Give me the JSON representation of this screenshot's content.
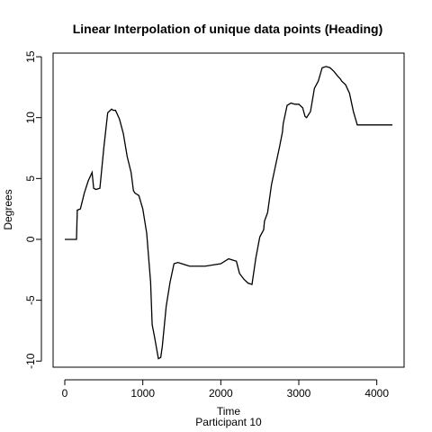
{
  "chart_data": {
    "type": "line",
    "title": "Linear Interpolation of unique data points (Heading)",
    "xlabel": "Time",
    "subtitle": "Participant  10",
    "ylabel": "Degrees",
    "xlim": [
      -150,
      4350
    ],
    "ylim": [
      -10.5,
      15.3
    ],
    "xticks": [
      0,
      1000,
      2000,
      3000,
      4000
    ],
    "yticks": [
      -10,
      -5,
      0,
      5,
      10,
      15
    ],
    "line_color": "#000000",
    "series": [
      {
        "x": [
          0,
          100,
          150,
          160,
          200,
          250,
          300,
          350,
          370,
          400,
          450,
          500,
          550,
          600,
          620,
          650,
          700,
          750,
          800,
          850,
          880,
          900,
          950,
          1000,
          1050,
          1100,
          1120,
          1150,
          1200,
          1230,
          1250,
          1300,
          1350,
          1400,
          1450,
          1500,
          1550,
          1600,
          1650,
          1700,
          1750,
          1800,
          1900,
          2000,
          2100,
          2200,
          2240,
          2300,
          2350,
          2400,
          2450,
          2500,
          2550,
          2560,
          2600,
          2650,
          2700,
          2750,
          2790,
          2800,
          2850,
          2900,
          2950,
          3000,
          3050,
          3080,
          3100,
          3150,
          3200,
          3250,
          3300,
          3350,
          3400,
          3450,
          3500,
          3530,
          3550,
          3600,
          3650,
          3700,
          3750,
          3800,
          3850,
          3900,
          3950,
          4000,
          4050,
          4100,
          4150,
          4200
        ],
        "y": [
          0,
          0,
          0,
          2.4,
          2.5,
          3.8,
          4.8,
          5.5,
          4.2,
          4.1,
          4.2,
          7.5,
          10.4,
          10.7,
          10.6,
          10.6,
          9.9,
          8.7,
          6.8,
          5.5,
          4.0,
          3.8,
          3.6,
          2.5,
          0.5,
          -3.5,
          -7.0,
          -8.0,
          -9.8,
          -9.7,
          -8.8,
          -5.5,
          -3.5,
          -2.0,
          -1.9,
          -2.0,
          -2.1,
          -2.2,
          -2.2,
          -2.2,
          -2.2,
          -2.2,
          -2.1,
          -2.0,
          -1.6,
          -1.8,
          -2.8,
          -3.3,
          -3.6,
          -3.7,
          -1.5,
          0.2,
          0.8,
          1.5,
          2.2,
          4.5,
          6.0,
          7.5,
          8.8,
          9.5,
          11.0,
          11.2,
          11.1,
          11.1,
          10.8,
          10.1,
          10.0,
          10.5,
          12.4,
          13.0,
          14.1,
          14.2,
          14.1,
          13.8,
          13.4,
          13.2,
          13.0,
          12.7,
          12.0,
          10.5,
          9.4,
          9.4,
          9.4,
          9.4,
          9.4,
          9.4,
          9.4,
          9.4,
          9.4,
          9.4
        ]
      }
    ]
  }
}
